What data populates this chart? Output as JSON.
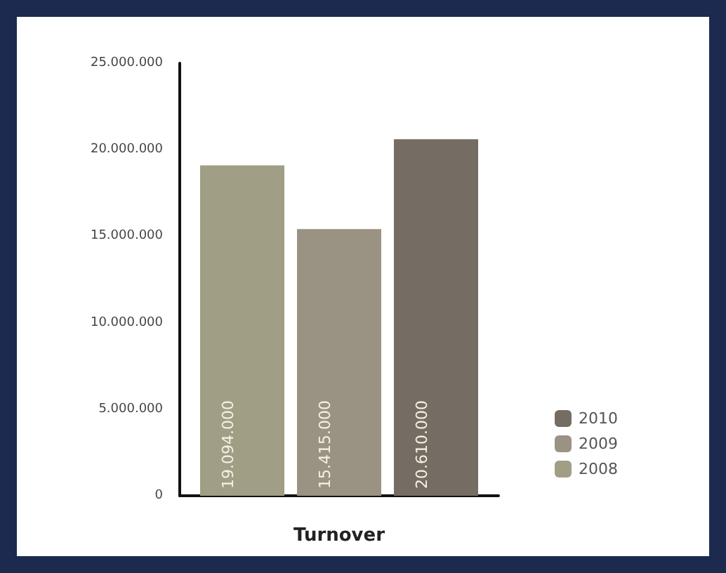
{
  "chart_data": {
    "type": "bar",
    "xlabel": "Turnover",
    "categories": [
      null
    ],
    "series": [
      {
        "name": "2008",
        "color": "#a19e86",
        "values": [
          19094000
        ],
        "value_labels": [
          "19.094.000"
        ]
      },
      {
        "name": "2009",
        "color": "#9a9282",
        "values": [
          15415000
        ],
        "value_labels": [
          "15.415.000"
        ]
      },
      {
        "name": "2010",
        "color": "#756d63",
        "values": [
          20610000
        ],
        "value_labels": [
          "20.610.000"
        ]
      }
    ],
    "ylim": [
      0,
      25000000
    ],
    "yticks": [
      {
        "value": 0,
        "label": "0"
      },
      {
        "value": 5000000,
        "label": "5.000.000"
      },
      {
        "value": 10000000,
        "label": "10.000.000"
      },
      {
        "value": 15000000,
        "label": "15.000.000"
      },
      {
        "value": 20000000,
        "label": "20.000.000"
      },
      {
        "value": 25000000,
        "label": "25.000.000"
      }
    ],
    "grid": false,
    "legend": "bottom right"
  }
}
